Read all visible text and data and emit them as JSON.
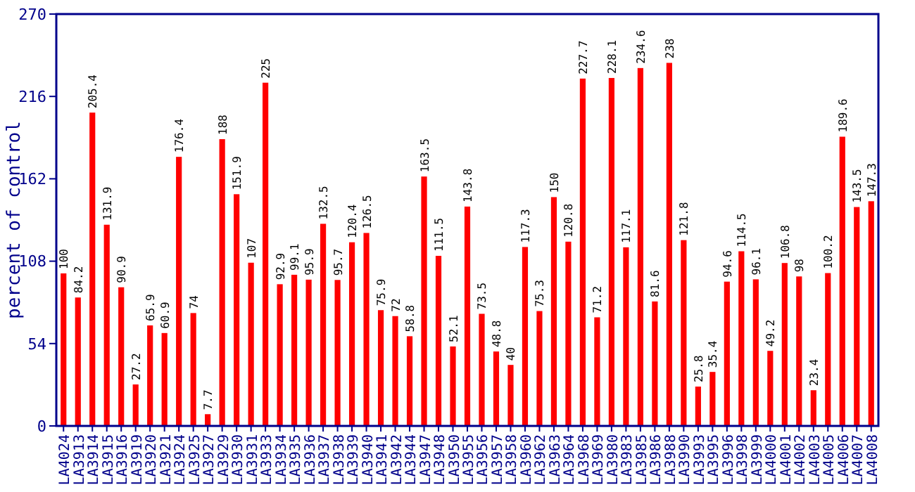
{
  "chart_data": {
    "type": "bar",
    "ylabel": "percent of control",
    "categories": [
      "LA4024",
      "LA3913",
      "LA3914",
      "LA3915",
      "LA3916",
      "LA3919",
      "LA3920",
      "LA3921",
      "LA3924",
      "LA3925",
      "LA3927",
      "LA3929",
      "LA3930",
      "LA3931",
      "LA3933",
      "LA3934",
      "LA3935",
      "LA3936",
      "LA3937",
      "LA3938",
      "LA3939",
      "LA3940",
      "LA3941",
      "LA3942",
      "LA3944",
      "LA3947",
      "LA3948",
      "LA3950",
      "LA3955",
      "LA3956",
      "LA3957",
      "LA3958",
      "LA3960",
      "LA3962",
      "LA3963",
      "LA3964",
      "LA3968",
      "LA3969",
      "LA3980",
      "LA3983",
      "LA3985",
      "LA3986",
      "LA3988",
      "LA3990",
      "LA3993",
      "LA3995",
      "LA3996",
      "LA3998",
      "LA3999",
      "LA4000",
      "LA4001",
      "LA4002",
      "LA4003",
      "LA4005",
      "LA4006",
      "LA4007",
      "LA4008"
    ],
    "values": [
      100,
      84.2,
      205.4,
      131.9,
      90.9,
      27.2,
      65.9,
      60.9,
      176.4,
      74,
      7.7,
      188,
      151.9,
      107,
      225,
      92.9,
      99.1,
      95.9,
      132.5,
      95.7,
      120.4,
      126.5,
      75.9,
      72,
      58.8,
      163.5,
      111.5,
      52.1,
      143.8,
      73.5,
      48.8,
      40,
      117.3,
      75.3,
      150,
      120.8,
      227.7,
      71.2,
      228.1,
      117.1,
      234.6,
      81.6,
      238,
      121.8,
      25.8,
      35.4,
      94.6,
      114.5,
      96.1,
      49.2,
      106.8,
      98,
      23.4,
      100.2,
      189.6,
      143.5,
      147.3
    ],
    "color": "#ff0000",
    "ylim": [
      0,
      270
    ],
    "yticks": [
      0,
      54,
      108,
      162,
      216,
      270
    ],
    "data_labels": true,
    "grid": false
  }
}
